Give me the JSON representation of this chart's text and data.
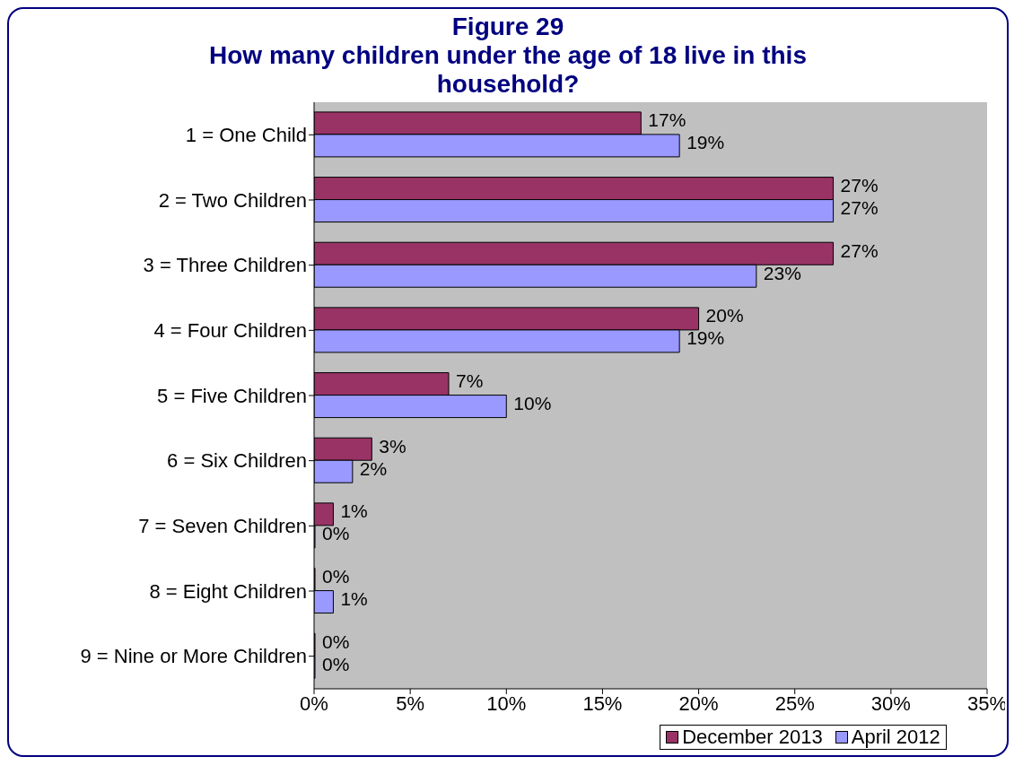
{
  "chart_data": {
    "type": "bar",
    "orientation": "horizontal",
    "title": "Figure 29",
    "subtitle": "How many children under the age of 18 live in this household?",
    "categories": [
      "1 = One Child",
      "2 = Two Children",
      "3 = Three Children",
      "4 = Four Children",
      "5 = Five Children",
      "6 = Six Children",
      "7 = Seven Children",
      "8 = Eight Children",
      "9 = Nine or More Children"
    ],
    "series": [
      {
        "name": "December 2013",
        "color": "#993366",
        "values": [
          17,
          27,
          27,
          20,
          7,
          3,
          1,
          0,
          0
        ],
        "value_labels": [
          "17%",
          "27%",
          "27%",
          "20%",
          "7%",
          "3%",
          "1%",
          "0%",
          "0%"
        ]
      },
      {
        "name": "April 2012",
        "color": "#9999ff",
        "values": [
          19,
          27,
          23,
          19,
          10,
          2,
          0,
          1,
          0
        ],
        "value_labels": [
          "19%",
          "27%",
          "23%",
          "19%",
          "10%",
          "2%",
          "0%",
          "1%",
          "0%"
        ]
      }
    ],
    "xlim": [
      0,
      35
    ],
    "xticks": [
      {
        "value": 0,
        "label": "0%"
      },
      {
        "value": 5,
        "label": "5%"
      },
      {
        "value": 10,
        "label": "10%"
      },
      {
        "value": 15,
        "label": "15%"
      },
      {
        "value": 20,
        "label": "20%"
      },
      {
        "value": 25,
        "label": "25%"
      },
      {
        "value": 30,
        "label": "30%"
      },
      {
        "value": 35,
        "label": "35%"
      }
    ],
    "grid": false,
    "legend": "bottom"
  }
}
